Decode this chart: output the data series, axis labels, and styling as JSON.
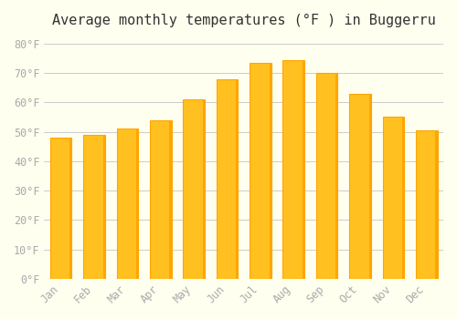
{
  "title": "Average monthly temperatures (°F ) in Buggerru",
  "months": [
    "Jan",
    "Feb",
    "Mar",
    "Apr",
    "May",
    "Jun",
    "Jul",
    "Aug",
    "Sep",
    "Oct",
    "Nov",
    "Dec"
  ],
  "values": [
    48,
    49,
    51,
    54,
    61,
    68,
    73.5,
    74.5,
    70,
    63,
    55,
    50.5
  ],
  "bar_color_main": "#FFC020",
  "bar_color_edge": "#FFA500",
  "background_color": "#FFFFF0",
  "grid_color": "#CCCCCC",
  "ylim": [
    0,
    83
  ],
  "yticks": [
    0,
    10,
    20,
    30,
    40,
    50,
    60,
    70,
    80
  ],
  "ytick_labels": [
    "0°F",
    "10°F",
    "20°F",
    "30°F",
    "40°F",
    "50°F",
    "60°F",
    "70°F",
    "80°F"
  ],
  "title_fontsize": 11,
  "tick_fontsize": 8.5,
  "tick_color": "#AAAAAA",
  "font_family": "monospace"
}
